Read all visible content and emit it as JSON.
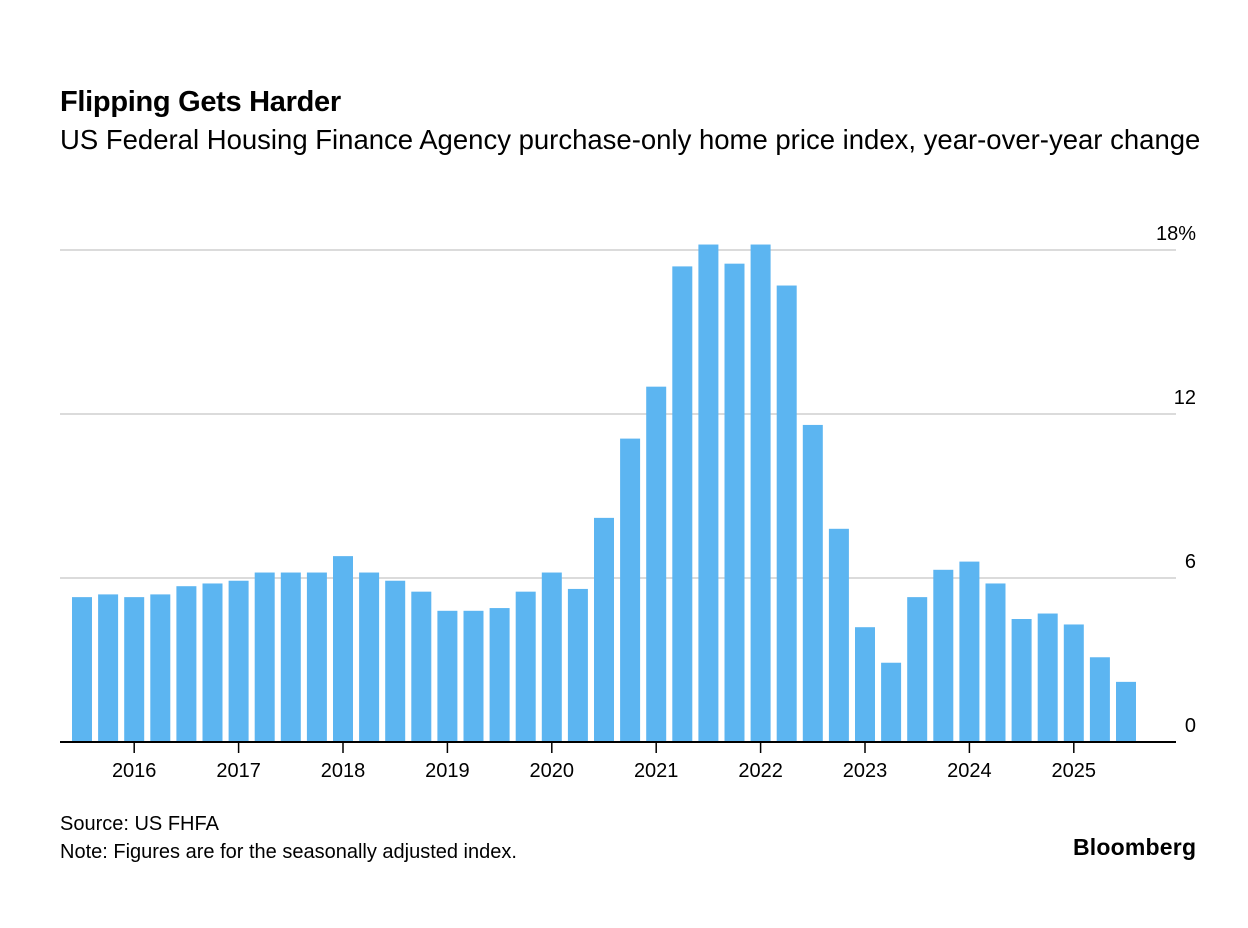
{
  "header": {
    "title": "Flipping Gets Harder",
    "subtitle": "US Federal Housing Finance Agency purchase-only home price index, year-over-year change"
  },
  "footer": {
    "source": "Source: US FHFA",
    "note": "Note: Figures are for the seasonally adjusted index.",
    "brand": "Bloomberg"
  },
  "colors": {
    "bar": "#5cb5f1",
    "grid": "#cfcfcf",
    "axis": "#000000"
  },
  "chart_data": {
    "type": "bar",
    "title": "Flipping Gets Harder",
    "subtitle": "US Federal Housing Finance Agency purchase-only home price index, year-over-year change",
    "xlabel": "",
    "ylabel": "",
    "frequency": "quarterly",
    "ylim": [
      0,
      18
    ],
    "y_ticks": [
      0,
      6,
      12,
      18
    ],
    "y_tick_labels": [
      "0",
      "6",
      "12",
      "18%"
    ],
    "y_axis_position": "right",
    "grid": true,
    "x_tick_labels": [
      "2016",
      "2017",
      "2018",
      "2019",
      "2020",
      "2021",
      "2022",
      "2023",
      "2024",
      "2025"
    ],
    "x_tick_bar_index": [
      2,
      6,
      10,
      14,
      18,
      22,
      26,
      30,
      34,
      38
    ],
    "values": [
      5.3,
      5.4,
      5.3,
      5.4,
      5.7,
      5.8,
      5.9,
      6.2,
      6.2,
      6.2,
      6.8,
      6.2,
      5.9,
      5.5,
      4.8,
      4.8,
      4.9,
      5.5,
      6.2,
      5.6,
      8.2,
      11.1,
      13.0,
      17.4,
      18.2,
      17.5,
      18.2,
      16.7,
      11.6,
      7.8,
      4.2,
      2.9,
      5.3,
      6.3,
      6.6,
      5.8,
      4.5,
      4.7,
      4.3,
      3.1,
      2.2
    ]
  }
}
